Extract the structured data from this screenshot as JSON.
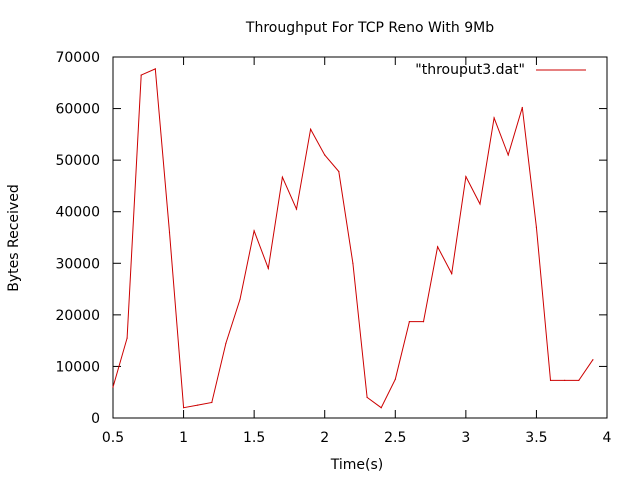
{
  "chart_data": {
    "type": "line",
    "title": "Throughput For TCP Reno With 9Mb",
    "xlabel": "Time(s)",
    "ylabel": "Bytes Received",
    "xlim": [
      0.5,
      4
    ],
    "ylim": [
      0,
      70000
    ],
    "xticks": [
      0.5,
      1,
      1.5,
      2,
      2.5,
      3,
      3.5,
      4
    ],
    "yticks": [
      0,
      10000,
      20000,
      30000,
      40000,
      50000,
      60000,
      70000
    ],
    "grid": false,
    "legend_position": "top-right",
    "series": [
      {
        "name": "\"throuput3.dat\"",
        "color": "#cc0000",
        "x": [
          0.5,
          0.6,
          0.7,
          0.8,
          0.9,
          1.0,
          1.1,
          1.2,
          1.3,
          1.4,
          1.5,
          1.6,
          1.7,
          1.8,
          1.9,
          2.0,
          2.1,
          2.2,
          2.3,
          2.4,
          2.5,
          2.6,
          2.7,
          2.8,
          2.9,
          3.0,
          3.1,
          3.2,
          3.3,
          3.4,
          3.5,
          3.6,
          3.7,
          3.8,
          3.9
        ],
        "y": [
          6000,
          15500,
          66500,
          67700,
          36000,
          2000,
          2500,
          3000,
          14500,
          23000,
          36300,
          29000,
          46700,
          40500,
          56000,
          51000,
          47800,
          30000,
          4000,
          2000,
          7500,
          18700,
          18700,
          33200,
          28000,
          46800,
          41500,
          58200,
          51000,
          60200,
          37000,
          7300,
          7300,
          7300,
          11300
        ]
      }
    ]
  }
}
